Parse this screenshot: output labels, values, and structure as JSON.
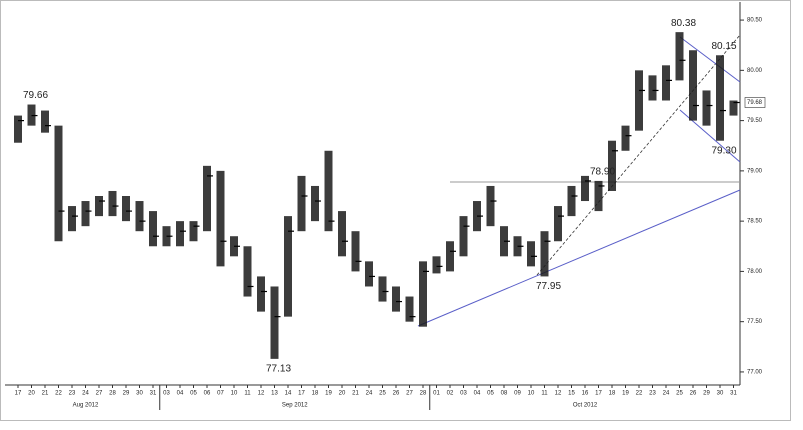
{
  "chart_data": {
    "type": "hlc",
    "categories": [
      "17",
      "20",
      "21",
      "22",
      "23",
      "24",
      "27",
      "28",
      "29",
      "30",
      "31",
      "03",
      "04",
      "05",
      "06",
      "07",
      "10",
      "11",
      "12",
      "13",
      "14",
      "17",
      "18",
      "19",
      "20",
      "21",
      "24",
      "25",
      "26",
      "27",
      "28",
      "01",
      "02",
      "03",
      "04",
      "05",
      "08",
      "09",
      "10",
      "11",
      "12",
      "15",
      "16",
      "17",
      "18",
      "19",
      "22",
      "23",
      "24",
      "25",
      "26",
      "29",
      "30",
      "31"
    ],
    "months": [
      "Aug 2012",
      "Sep 2012",
      "Oct 2012"
    ],
    "high": [
      79.55,
      79.66,
      79.6,
      79.45,
      78.65,
      78.7,
      78.75,
      78.8,
      78.75,
      78.7,
      78.6,
      78.45,
      78.5,
      78.5,
      79.05,
      79.0,
      78.35,
      78.25,
      77.95,
      77.85,
      78.55,
      78.95,
      78.85,
      79.2,
      78.6,
      78.4,
      78.1,
      77.95,
      77.85,
      77.75,
      78.1,
      78.15,
      78.3,
      78.55,
      78.7,
      78.85,
      78.45,
      78.35,
      78.3,
      78.4,
      78.65,
      78.85,
      78.95,
      78.9,
      79.3,
      79.45,
      80.0,
      79.95,
      80.05,
      80.38,
      80.2,
      79.8,
      80.15,
      79.7
    ],
    "low": [
      79.28,
      79.45,
      79.38,
      78.3,
      78.4,
      78.45,
      78.55,
      78.55,
      78.5,
      78.4,
      78.25,
      78.25,
      78.25,
      78.3,
      78.4,
      78.05,
      78.15,
      77.75,
      77.6,
      77.13,
      77.55,
      78.4,
      78.5,
      78.4,
      78.15,
      78.0,
      77.85,
      77.7,
      77.6,
      77.5,
      77.45,
      77.98,
      78.0,
      78.15,
      78.4,
      78.45,
      78.15,
      78.15,
      78.05,
      77.95,
      78.3,
      78.55,
      78.7,
      78.6,
      78.8,
      79.2,
      79.4,
      79.7,
      79.7,
      79.9,
      79.5,
      79.45,
      79.3,
      79.55
    ],
    "close": [
      79.5,
      79.55,
      79.45,
      78.6,
      78.55,
      78.6,
      78.7,
      78.65,
      78.6,
      78.5,
      78.35,
      78.35,
      78.4,
      78.45,
      78.95,
      78.3,
      78.25,
      77.85,
      77.8,
      77.55,
      78.4,
      78.75,
      78.7,
      78.5,
      78.3,
      78.1,
      77.95,
      77.8,
      77.7,
      77.55,
      78.0,
      78.05,
      78.2,
      78.45,
      78.55,
      78.7,
      78.3,
      78.25,
      78.15,
      78.3,
      78.55,
      78.75,
      78.9,
      78.85,
      79.2,
      79.35,
      79.8,
      79.8,
      79.9,
      80.1,
      79.65,
      79.65,
      79.6,
      79.68
    ],
    "annotations": [
      {
        "value": 79.66,
        "label": "79.66"
      },
      {
        "value": 77.13,
        "label": "77.13"
      },
      {
        "value": 77.95,
        "label": "77.95"
      },
      {
        "value": 78.9,
        "label": "78.90"
      },
      {
        "value": 80.38,
        "label": "80.38"
      },
      {
        "value": 80.15,
        "label": "80.15"
      },
      {
        "value": 79.3,
        "label": "79.30"
      }
    ],
    "color": "#1a1a1a",
    "ylim": [
      76.87,
      80.65
    ],
    "yticks": [
      {
        "value": 77,
        "label": "77.00"
      },
      {
        "value": 77.5,
        "label": "77.50"
      },
      {
        "value": 78,
        "label": "78.00"
      },
      {
        "value": 78.5,
        "label": "78.50"
      },
      {
        "value": 79,
        "label": "79.00"
      },
      {
        "value": 79.5,
        "label": "79.50"
      },
      {
        "value": 80,
        "label": "80.00"
      },
      {
        "value": 80.5,
        "label": "80.50"
      }
    ]
  }
}
